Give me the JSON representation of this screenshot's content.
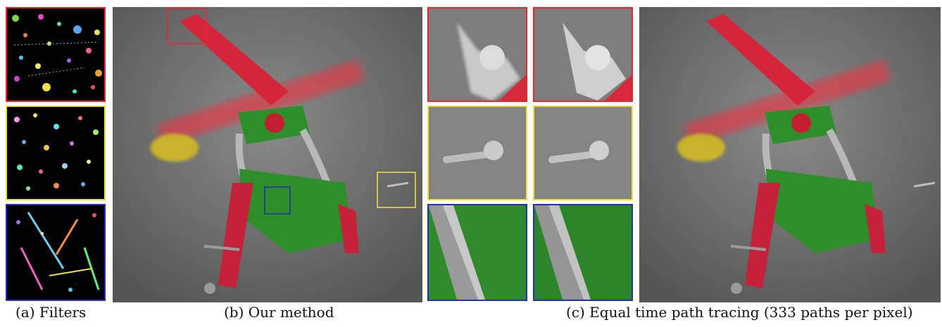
{
  "figure": {
    "captions": {
      "a": "(a) Filters",
      "b": "(b) Our method",
      "c": "(c) Equal time path tracing (333 paths per pixel)"
    },
    "panels": {
      "filters": {
        "count": 3,
        "frame_colors": [
          "#e8262c",
          "#f2e33a",
          "#1f2fb8"
        ]
      },
      "ours": {
        "inset_frames": [
          "red",
          "yellow",
          "blue"
        ]
      },
      "crops": {
        "rows": 3,
        "columns": 2,
        "frame_colors": [
          "#e8262c",
          "#f2e33a",
          "#1f2fb8"
        ]
      },
      "reference": {}
    },
    "colors": {
      "red_frame": "#e8262c",
      "yellow_frame": "#f2e33a",
      "blue_frame": "#1f2fb8",
      "metal_red": "#d4253a",
      "metal_green": "#2e8f2a",
      "ground": "#6f6f6f"
    }
  }
}
